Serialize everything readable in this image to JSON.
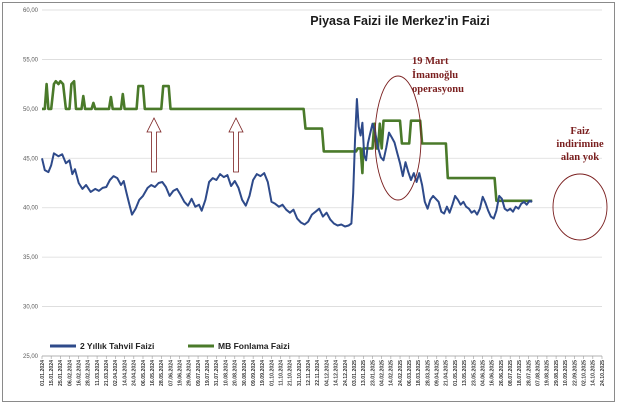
{
  "chart_data": {
    "type": "line",
    "title": "Piyasa Faizi ile Merkez'in Faizi",
    "ylim": [
      25,
      60
    ],
    "yticks": [
      "25,00",
      "30,00",
      "35,00",
      "40,00",
      "45,00",
      "50,00",
      "55,00",
      "60,00"
    ],
    "x_labels": [
      "01.01.2024",
      "15.01.2024",
      "25.01.2024",
      "06.02.2024",
      "16.02.2024",
      "28.02.2024",
      "11.03.2024",
      "21.03.2024",
      "02.04.2024",
      "14.04.2024",
      "24.04.2024",
      "06.05.2024",
      "16.05.2024",
      "28.05.2024",
      "07.06.2024",
      "19.06.2024",
      "29.06.2024",
      "09.07.2024",
      "19.07.2024",
      "31.07.2024",
      "10.08.2024",
      "20.08.2024",
      "30.08.2024",
      "09.09.2024",
      "19.09.2024",
      "01.10.2024",
      "11.10.2024",
      "21.10.2024",
      "31.10.2024",
      "12.11.2024",
      "22.11.2024",
      "04.12.2024",
      "14.12.2024",
      "24.12.2024",
      "03.01.2025",
      "13.01.2025",
      "23.01.2025",
      "04.02.2025",
      "14.02.2025",
      "24.02.2025",
      "06.03.2025",
      "18.03.2025",
      "28.03.2025",
      "09.04.2025",
      "21.04.2025",
      "01.05.2025",
      "13.05.2025",
      "23.05.2025",
      "04.06.2025",
      "16.06.2025",
      "26.06.2025",
      "08.07.2025",
      "18.07.2025",
      "28.07.2025",
      "07.08.2025",
      "19.08.2025",
      "29.08.2025",
      "10.09.2025",
      "22.09.2025",
      "02.10.2025",
      "14.10.2025",
      "24.10.2025"
    ],
    "series": [
      {
        "name": "2 Yıllık Tahvil Faizi",
        "color": "#2e4a8a",
        "points": [
          [
            0,
            45
          ],
          [
            0.3,
            43.8
          ],
          [
            0.7,
            43.6
          ],
          [
            1,
            44.3
          ],
          [
            1.3,
            45.5
          ],
          [
            1.8,
            45.2
          ],
          [
            2.2,
            45.4
          ],
          [
            2.6,
            44.5
          ],
          [
            3,
            44.8
          ],
          [
            3.3,
            43.4
          ],
          [
            3.6,
            43.9
          ],
          [
            4,
            42.5
          ],
          [
            4.4,
            41.9
          ],
          [
            4.8,
            42.3
          ],
          [
            5.3,
            41.6
          ],
          [
            5.8,
            41.9
          ],
          [
            6.2,
            41.7
          ],
          [
            6.6,
            42
          ],
          [
            7,
            42.1
          ],
          [
            7.4,
            42.8
          ],
          [
            7.8,
            43.2
          ],
          [
            8.2,
            43
          ],
          [
            8.6,
            42.3
          ],
          [
            8.9,
            42.7
          ],
          [
            9.2,
            41.5
          ],
          [
            9.5,
            40.4
          ],
          [
            9.8,
            39.3
          ],
          [
            10.2,
            39.9
          ],
          [
            10.6,
            40.8
          ],
          [
            11,
            41.2
          ],
          [
            11.5,
            42
          ],
          [
            11.9,
            42.3
          ],
          [
            12.3,
            42.1
          ],
          [
            12.7,
            42.5
          ],
          [
            13.1,
            42.6
          ],
          [
            13.5,
            42.1
          ],
          [
            13.9,
            41.2
          ],
          [
            14.3,
            41.7
          ],
          [
            14.7,
            41.9
          ],
          [
            15.1,
            41.3
          ],
          [
            15.5,
            40.6
          ],
          [
            15.9,
            40.2
          ],
          [
            16.3,
            40.9
          ],
          [
            16.7,
            40.1
          ],
          [
            17.1,
            40.3
          ],
          [
            17.4,
            39.7
          ],
          [
            17.8,
            40.8
          ],
          [
            18.2,
            42.6
          ],
          [
            18.6,
            43
          ],
          [
            19,
            42.8
          ],
          [
            19.4,
            43.4
          ],
          [
            19.8,
            43.1
          ],
          [
            20.2,
            43.3
          ],
          [
            20.6,
            42.2
          ],
          [
            21,
            42.7
          ],
          [
            21.4,
            42
          ],
          [
            21.8,
            40.8
          ],
          [
            22.2,
            40.2
          ],
          [
            22.6,
            41.2
          ],
          [
            23,
            42.8
          ],
          [
            23.4,
            43.4
          ],
          [
            23.8,
            43.2
          ],
          [
            24.2,
            43.5
          ],
          [
            24.6,
            42.6
          ],
          [
            25,
            40.6
          ],
          [
            25.4,
            40.4
          ],
          [
            25.8,
            40.1
          ],
          [
            26.2,
            40.3
          ],
          [
            26.6,
            39.8
          ],
          [
            27,
            39.5
          ],
          [
            27.4,
            39.8
          ],
          [
            27.8,
            38.9
          ],
          [
            28.2,
            38.5
          ],
          [
            28.6,
            38.3
          ],
          [
            29,
            38.6
          ],
          [
            29.4,
            39.3
          ],
          [
            29.8,
            39.6
          ],
          [
            30.2,
            39.9
          ],
          [
            30.6,
            39.1
          ],
          [
            31,
            39.5
          ],
          [
            31.4,
            38.8
          ],
          [
            31.8,
            38.4
          ],
          [
            32.2,
            38.2
          ],
          [
            32.6,
            38.3
          ],
          [
            33,
            38.1
          ],
          [
            33.4,
            38.2
          ],
          [
            33.7,
            38.4
          ],
          [
            33.9,
            41.5
          ],
          [
            34.1,
            46.8
          ],
          [
            34.3,
            51
          ],
          [
            34.5,
            48.2
          ],
          [
            34.7,
            47.3
          ],
          [
            34.9,
            48.6
          ],
          [
            35.1,
            45.3
          ],
          [
            35.3,
            44.8
          ],
          [
            35.5,
            46.5
          ],
          [
            35.7,
            47.3
          ],
          [
            36,
            48.5
          ],
          [
            36.3,
            47.6
          ],
          [
            36.6,
            46.1
          ],
          [
            36.9,
            45.1
          ],
          [
            37.2,
            44.8
          ],
          [
            37.5,
            46.1
          ],
          [
            37.8,
            47.6
          ],
          [
            38.1,
            47.1
          ],
          [
            38.4,
            46.6
          ],
          [
            38.7,
            45.5
          ],
          [
            39,
            44.5
          ],
          [
            39.3,
            43.2
          ],
          [
            39.6,
            44.6
          ],
          [
            39.9,
            43.6
          ],
          [
            40.2,
            42.8
          ],
          [
            40.5,
            43.5
          ],
          [
            40.8,
            42.6
          ],
          [
            41.1,
            43.5
          ],
          [
            41.4,
            42.3
          ],
          [
            41.7,
            40.6
          ],
          [
            42,
            39.9
          ],
          [
            42.3,
            40.8
          ],
          [
            42.6,
            41.2
          ],
          [
            42.9,
            40.9
          ],
          [
            43.2,
            40.6
          ],
          [
            43.5,
            39.6
          ],
          [
            43.8,
            39.4
          ],
          [
            44.1,
            40.1
          ],
          [
            44.4,
            39.5
          ],
          [
            44.7,
            40.3
          ],
          [
            45,
            41.2
          ],
          [
            45.3,
            40.8
          ],
          [
            45.6,
            40.3
          ],
          [
            45.9,
            40.6
          ],
          [
            46.2,
            40.1
          ],
          [
            46.5,
            39.9
          ],
          [
            46.8,
            39.5
          ],
          [
            47.1,
            39.7
          ],
          [
            47.4,
            39.3
          ],
          [
            47.7,
            39.9
          ],
          [
            48,
            41.1
          ],
          [
            48.3,
            40.5
          ],
          [
            48.6,
            39.7
          ],
          [
            48.9,
            39.1
          ],
          [
            49.2,
            38.9
          ],
          [
            49.5,
            39.7
          ],
          [
            49.8,
            41.2
          ],
          [
            50.1,
            40.9
          ],
          [
            50.4,
            39.9
          ],
          [
            50.7,
            39.7
          ],
          [
            51,
            39.9
          ],
          [
            51.3,
            39.6
          ],
          [
            51.6,
            40.1
          ],
          [
            51.9,
            39.9
          ],
          [
            52.2,
            40.4
          ],
          [
            52.5,
            40.6
          ],
          [
            52.8,
            40.3
          ],
          [
            53.1,
            40.7
          ],
          [
            53.4,
            40.6
          ]
        ]
      },
      {
        "name": "MB Fonlama Faizi",
        "color": "#4a7a2a",
        "points": [
          [
            0,
            50
          ],
          [
            0.3,
            50
          ],
          [
            0.5,
            52.5
          ],
          [
            0.7,
            50
          ],
          [
            1,
            50
          ],
          [
            1.3,
            52.5
          ],
          [
            1.5,
            52.8
          ],
          [
            1.8,
            52.5
          ],
          [
            2,
            52.8
          ],
          [
            2.3,
            52.5
          ],
          [
            2.6,
            50
          ],
          [
            3,
            50
          ],
          [
            3.2,
            52.5
          ],
          [
            3.5,
            52.8
          ],
          [
            3.7,
            50
          ],
          [
            4.3,
            50
          ],
          [
            4.5,
            51.3
          ],
          [
            4.7,
            50
          ],
          [
            5.4,
            50
          ],
          [
            5.6,
            50.6
          ],
          [
            5.8,
            50
          ],
          [
            7.3,
            50
          ],
          [
            7.5,
            51.2
          ],
          [
            7.7,
            50
          ],
          [
            8.6,
            50
          ],
          [
            8.8,
            51.5
          ],
          [
            9,
            50
          ],
          [
            10.3,
            50
          ],
          [
            10.5,
            52.3
          ],
          [
            11,
            52.3
          ],
          [
            11.2,
            50
          ],
          [
            13,
            50
          ],
          [
            13.2,
            52.3
          ],
          [
            13.8,
            52.3
          ],
          [
            14,
            50
          ],
          [
            28.5,
            50
          ],
          [
            28.7,
            48
          ],
          [
            30.5,
            48
          ],
          [
            30.7,
            45.7
          ],
          [
            34.2,
            45.7
          ],
          [
            34.4,
            46
          ],
          [
            34.7,
            46
          ],
          [
            34.9,
            43.5
          ],
          [
            35,
            46
          ],
          [
            36,
            46
          ],
          [
            36.2,
            48.5
          ],
          [
            36.4,
            46
          ],
          [
            36.6,
            46
          ],
          [
            36.8,
            48.5
          ],
          [
            37,
            46
          ],
          [
            37.2,
            48.8
          ],
          [
            39,
            48.8
          ],
          [
            39.2,
            46.5
          ],
          [
            40,
            46.5
          ],
          [
            40.2,
            48.8
          ],
          [
            41.2,
            48.8
          ],
          [
            41.4,
            46.5
          ],
          [
            44,
            46.5
          ],
          [
            44.2,
            43
          ],
          [
            49.3,
            43
          ],
          [
            49.5,
            40.7
          ],
          [
            53.4,
            40.7
          ]
        ]
      }
    ],
    "annotations": [
      {
        "text": [
          "19 Mart",
          "İmamoğlu",
          "operasyonu"
        ]
      },
      {
        "text": [
          "Faiz",
          "indirimine",
          "alan yok"
        ]
      }
    ],
    "legend": {
      "position": "bottom-left"
    }
  }
}
